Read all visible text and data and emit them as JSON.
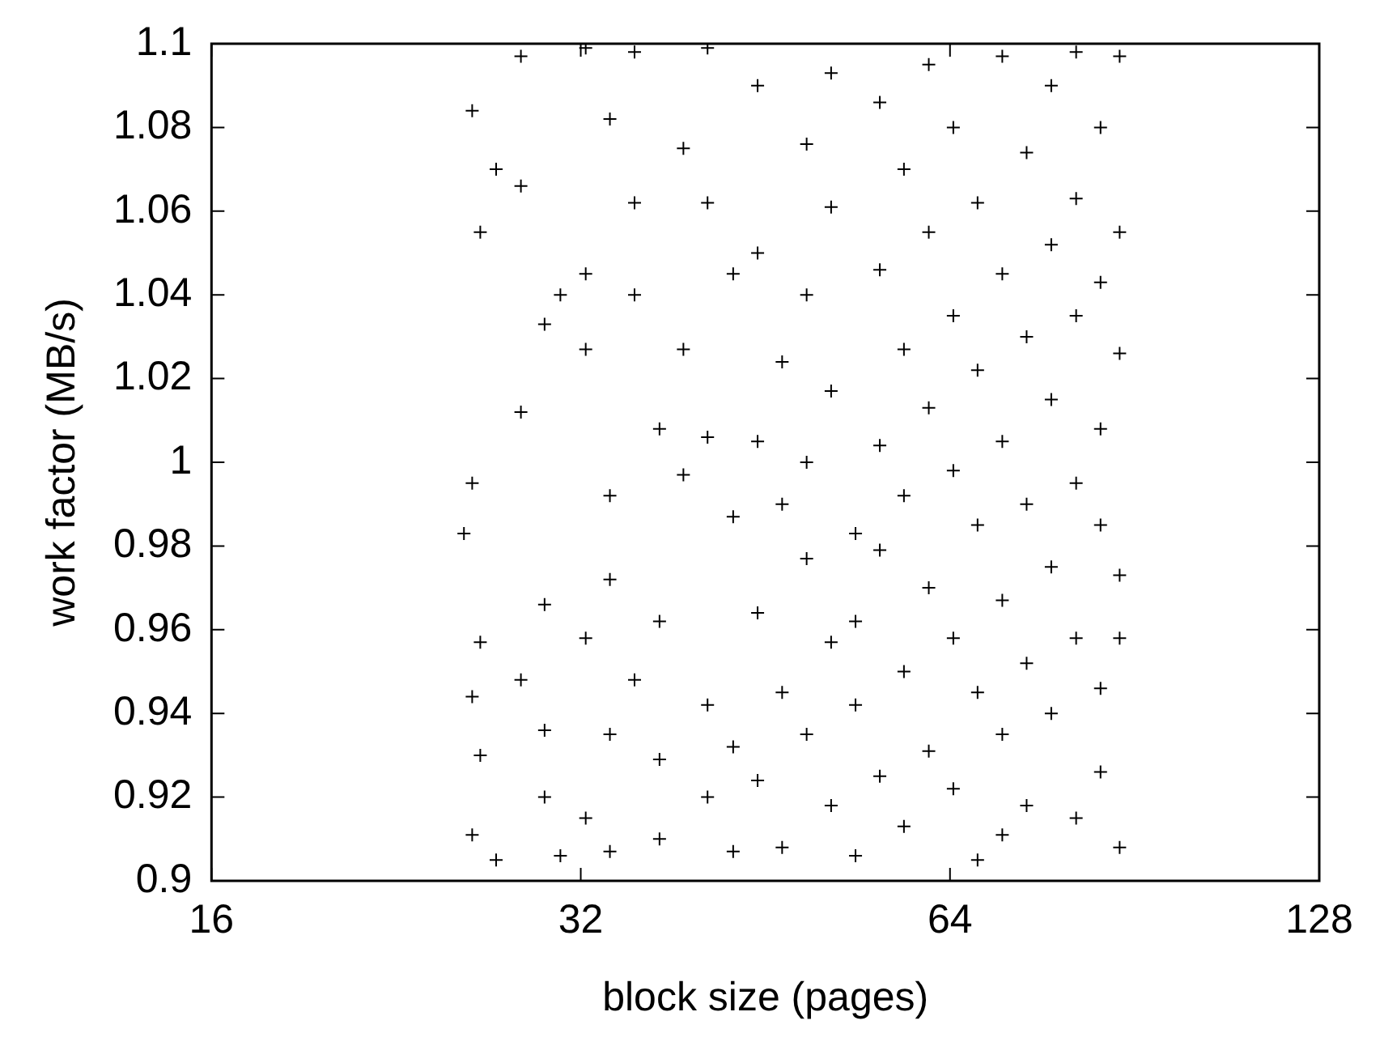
{
  "chart_data": {
    "type": "scatter",
    "xlabel": "block size (pages)",
    "ylabel": "work factor (MB/s)",
    "log": "x",
    "xlim": [
      16,
      128
    ],
    "xticks": [
      16,
      32,
      64,
      128
    ],
    "ylim": [
      0.9,
      1.1
    ],
    "yticks": [
      {
        "value": 0.9,
        "label": "0.9"
      },
      {
        "value": 0.92,
        "label": "0.92"
      },
      {
        "value": 0.94,
        "label": "0.94"
      },
      {
        "value": 0.96,
        "label": "0.96"
      },
      {
        "value": 0.98,
        "label": "0.98"
      },
      {
        "value": 1,
        "label": "1"
      },
      {
        "value": 1.02,
        "label": "1.02"
      },
      {
        "value": 1.04,
        "label": "1.04"
      },
      {
        "value": 1.06,
        "label": "1.06"
      },
      {
        "value": 1.08,
        "label": "1.08"
      },
      {
        "value": 1.1,
        "label": "1.1"
      }
    ],
    "grid": false,
    "legend": false,
    "marker": "cross",
    "series": [
      {
        "color": "#000000",
        "x": [
          26.1,
          26.5,
          27.3,
          26.1,
          25.7,
          26.5,
          26.1,
          26.5,
          26.1,
          27.3,
          28.6,
          28.6,
          29.9,
          28.6,
          29.9,
          28.6,
          29.9,
          29.9,
          30.8,
          30.8,
          32.3,
          32.3,
          32.3,
          33.8,
          33.8,
          32.3,
          33.8,
          32.3,
          33.8,
          33.8,
          35.4,
          35.4,
          37.1,
          37.1,
          35.4,
          37.1,
          37.1,
          35.4,
          38.8,
          38.8,
          40.6,
          40.6,
          40.6,
          42.6,
          40.6,
          42.6,
          40.6,
          42.6,
          38.8,
          42.6,
          44.6,
          44.6,
          44.6,
          46.7,
          44.6,
          46.7,
          44.6,
          46.7,
          46.7,
          48.9,
          48.9,
          48.9,
          48.9,
          51.2,
          48.9,
          51.2,
          51.2,
          51.2,
          51.2,
          53.6,
          53.6,
          53.6,
          53.6,
          56.1,
          56.1,
          56.1,
          56.1,
          56.1,
          58.7,
          58.7,
          58.7,
          58.7,
          58.7,
          61.5,
          61.5,
          61.5,
          61.5,
          61.5,
          64.4,
          64.4,
          64.4,
          64.4,
          64.4,
          67.4,
          67.4,
          67.4,
          67.4,
          67.4,
          70.6,
          70.6,
          70.6,
          70.6,
          70.6,
          70.6,
          73.9,
          73.9,
          73.9,
          73.9,
          73.9,
          77.4,
          77.4,
          77.4,
          77.4,
          77.4,
          81.1,
          81.1,
          81.1,
          81.1,
          81.1,
          81.1,
          84.9,
          84.9,
          84.9,
          84.9,
          84.9,
          84.9,
          88.0,
          88.0,
          88.0,
          88.0,
          88.0,
          88.0
        ],
        "values": [
          1.084,
          1.055,
          1.07,
          0.995,
          0.983,
          0.957,
          0.944,
          0.93,
          0.911,
          0.905,
          1.097,
          1.066,
          1.033,
          1.012,
          0.966,
          0.948,
          0.936,
          0.92,
          0.906,
          1.04,
          1.099,
          1.045,
          1.027,
          0.992,
          0.972,
          0.958,
          0.935,
          0.915,
          0.907,
          1.082,
          1.098,
          1.04,
          1.008,
          0.962,
          0.948,
          0.929,
          0.91,
          1.062,
          1.075,
          1.027,
          1.099,
          1.062,
          1.006,
          0.987,
          0.942,
          0.932,
          0.92,
          0.907,
          0.997,
          1.045,
          1.09,
          1.05,
          1.005,
          0.99,
          0.964,
          0.945,
          0.924,
          0.908,
          1.024,
          1.076,
          1.04,
          1.0,
          0.977,
          0.957,
          0.935,
          0.918,
          1.093,
          1.061,
          1.017,
          0.983,
          0.962,
          0.942,
          0.906,
          1.086,
          1.046,
          1.004,
          0.979,
          0.925,
          1.07,
          1.027,
          0.992,
          0.95,
          0.913,
          1.095,
          1.055,
          1.013,
          0.97,
          0.931,
          1.08,
          1.035,
          0.998,
          0.958,
          0.922,
          1.062,
          1.022,
          0.985,
          0.945,
          0.905,
          1.097,
          1.045,
          1.005,
          0.967,
          0.935,
          0.911,
          1.074,
          1.03,
          0.99,
          0.952,
          0.918,
          1.09,
          1.052,
          1.015,
          0.975,
          0.94,
          1.098,
          1.063,
          1.035,
          0.995,
          0.958,
          0.915,
          1.08,
          1.043,
          1.008,
          0.985,
          0.946,
          0.926,
          1.097,
          1.055,
          1.026,
          0.973,
          0.958,
          0.908
        ]
      }
    ]
  }
}
